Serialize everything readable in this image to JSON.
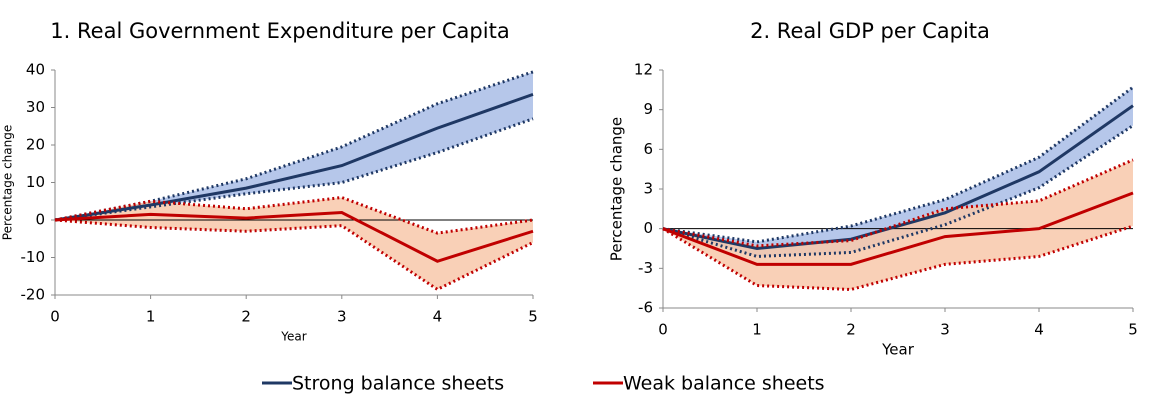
{
  "chart_data": [
    {
      "type": "line",
      "title": "1. Real Government Expenditure per Capita",
      "x_label": "Year",
      "y_label": "Percentage change",
      "x": [
        0,
        1,
        2,
        3,
        4,
        5
      ],
      "xlim": [
        0,
        5
      ],
      "xticks": [
        0,
        1,
        2,
        3,
        4,
        5
      ],
      "ylim": [
        -20,
        40
      ],
      "yticks": [
        -20,
        -10,
        0,
        10,
        20,
        30,
        40
      ],
      "series": [
        {
          "name": "Strong balance sheets",
          "color": "#1f3864",
          "band_color": "#a9bde6",
          "values": [
            0,
            4,
            8.5,
            14.5,
            24.5,
            33.5
          ],
          "upper": [
            0,
            5,
            11,
            19.5,
            31,
            39.5
          ],
          "lower": [
            0,
            3.5,
            7,
            10,
            18,
            27
          ]
        },
        {
          "name": "Weak balance sheets",
          "color": "#c00000",
          "band_color": "#f8c8aa",
          "values": [
            0,
            1.5,
            0.5,
            2,
            -11,
            -3
          ],
          "upper": [
            0,
            5,
            3,
            6,
            -3.5,
            0
          ],
          "lower": [
            0,
            -2,
            -3,
            -1.5,
            -18.5,
            -6
          ]
        }
      ]
    },
    {
      "type": "line",
      "title": "2. Real GDP per Capita",
      "x_label": "Year",
      "y_label": "Percentage change",
      "x": [
        0,
        1,
        2,
        3,
        4,
        5
      ],
      "xlim": [
        0,
        5
      ],
      "xticks": [
        0,
        1,
        2,
        3,
        4,
        5
      ],
      "ylim": [
        -6,
        12
      ],
      "yticks": [
        -6,
        -3,
        0,
        3,
        6,
        9,
        12
      ],
      "series": [
        {
          "name": "Strong balance sheets",
          "color": "#1f3864",
          "band_color": "#a9bde6",
          "values": [
            0,
            -1.5,
            -0.8,
            1.2,
            4.3,
            9.3
          ],
          "upper": [
            0,
            -1.0,
            0.2,
            2.2,
            5.4,
            10.7
          ],
          "lower": [
            0,
            -2.1,
            -1.8,
            0.3,
            3.1,
            7.8
          ]
        },
        {
          "name": "Weak balance sheets",
          "color": "#c00000",
          "band_color": "#f8c8aa",
          "values": [
            0,
            -2.7,
            -2.7,
            -0.6,
            0,
            2.7
          ],
          "upper": [
            0,
            -1.3,
            -0.9,
            1.5,
            2.1,
            5.2
          ],
          "lower": [
            0,
            -4.3,
            -4.6,
            -2.7,
            -2.1,
            0.2
          ]
        }
      ]
    }
  ]
}
